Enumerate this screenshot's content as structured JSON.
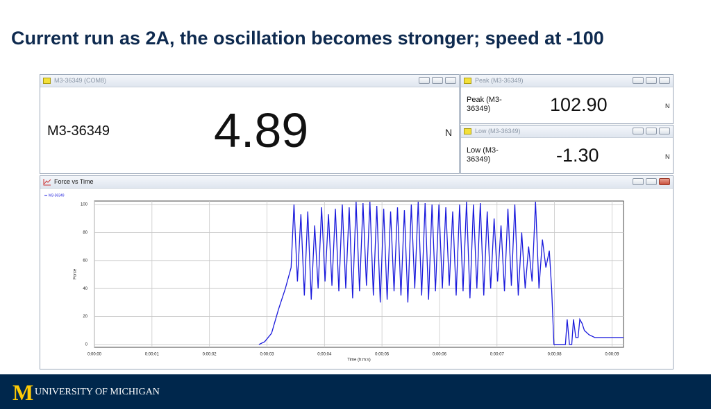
{
  "slide_title": "Current run as 2A, the oscillation becomes stronger; speed at -100",
  "windows": [
    {
      "title": "M3-36349 (COM8)",
      "label": "M3-36349",
      "value": "4.89",
      "unit": "N"
    },
    {
      "title": "Peak (M3-36349)",
      "label": "Peak (M3-36349)",
      "value": "102.90",
      "unit": "N"
    },
    {
      "title": "Low (M3-36349)",
      "label": "Low (M3-36349)",
      "value": "-1.30",
      "unit": "N"
    }
  ],
  "chart_data": {
    "type": "line",
    "title": "Force vs Time",
    "x_label": "Time (h:m:s)",
    "y_label": "Force",
    "xlim": [
      0,
      9.2
    ],
    "ylim": [
      -2,
      102.5
    ],
    "xticks": [
      {
        "value": 0,
        "label": "0:00:00"
      },
      {
        "value": 1,
        "label": "0:00:01"
      },
      {
        "value": 2,
        "label": "0:00:02"
      },
      {
        "value": 3,
        "label": "0:00:03"
      },
      {
        "value": 4,
        "label": "0:00:04"
      },
      {
        "value": 5,
        "label": "0:00:05"
      },
      {
        "value": 6,
        "label": "0:00:06"
      },
      {
        "value": 7,
        "label": "0:00:07"
      },
      {
        "value": 8,
        "label": "0:00:08"
      },
      {
        "value": 9,
        "label": "0:00:09"
      }
    ],
    "yticks": [
      0,
      20,
      40,
      60,
      80,
      100
    ],
    "grid": true,
    "x": [
      2.86,
      2.96,
      3.08,
      3.2,
      3.32,
      3.42,
      3.47,
      3.53,
      3.59,
      3.65,
      3.71,
      3.77,
      3.83,
      3.89,
      3.95,
      4.01,
      4.07,
      4.13,
      4.19,
      4.25,
      4.31,
      4.37,
      4.43,
      4.49,
      4.55,
      4.61,
      4.67,
      4.73,
      4.79,
      4.85,
      4.91,
      4.97,
      5.03,
      5.09,
      5.15,
      5.21,
      5.27,
      5.33,
      5.39,
      5.45,
      5.51,
      5.57,
      5.63,
      5.69,
      5.75,
      5.81,
      5.87,
      5.93,
      5.99,
      6.05,
      6.11,
      6.17,
      6.23,
      6.29,
      6.35,
      6.41,
      6.47,
      6.53,
      6.59,
      6.65,
      6.71,
      6.77,
      6.83,
      6.89,
      6.95,
      7.01,
      7.07,
      7.13,
      7.19,
      7.25,
      7.31,
      7.37,
      7.43,
      7.49,
      7.55,
      7.61,
      7.67,
      7.73,
      7.79,
      7.85,
      7.91,
      7.95,
      7.99,
      8.05,
      8.19,
      8.22,
      8.26,
      8.3,
      8.33,
      8.37,
      8.41,
      8.44,
      8.48,
      8.52,
      8.6,
      8.7,
      9.2
    ],
    "series": [
      {
        "name": "M3-36349",
        "color": "#1a1adc",
        "values": [
          0,
          2,
          8,
          25,
          40,
          55,
          100,
          45,
          93,
          35,
          95,
          32,
          85,
          40,
          98,
          45,
          93,
          42,
          97,
          38,
          100,
          40,
          98,
          33,
          102,
          38,
          101,
          42,
          102,
          35,
          99,
          30,
          97,
          32,
          95,
          38,
          98,
          35,
          96,
          30,
          100,
          40,
          102,
          35,
          101,
          32,
          100,
          38,
          100,
          40,
          98,
          42,
          95,
          35,
          100,
          38,
          102,
          33,
          100,
          40,
          101,
          35,
          95,
          40,
          90,
          45,
          85,
          38,
          97,
          42,
          100,
          35,
          80,
          40,
          70,
          45,
          102,
          40,
          75,
          55,
          67,
          40,
          0,
          0,
          0,
          18,
          0,
          0,
          18,
          5,
          5,
          18,
          15,
          10,
          7,
          5,
          5
        ]
      }
    ]
  },
  "footer": {
    "logo": "M",
    "text": "UNIVERSITY OF MICHIGAN"
  }
}
